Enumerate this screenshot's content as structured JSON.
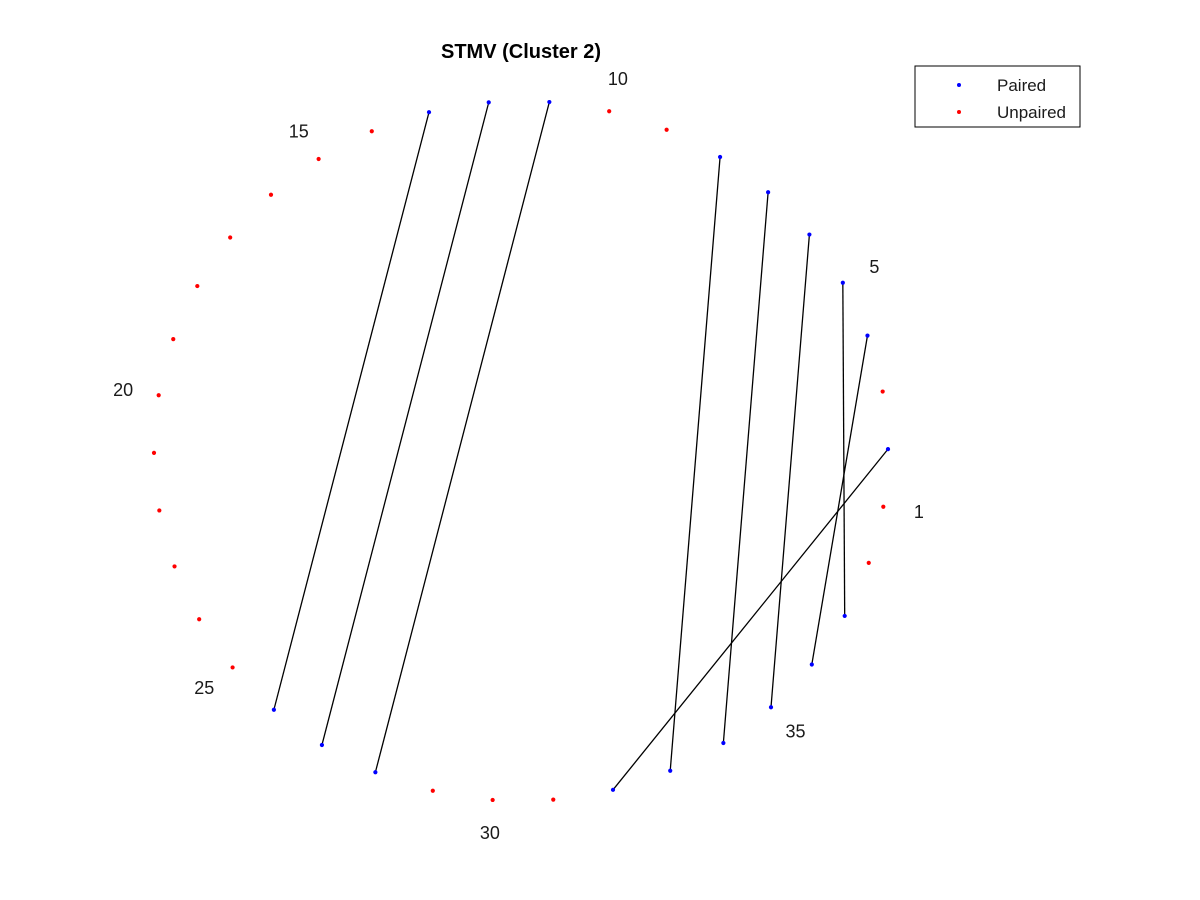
{
  "title": "STMV (Cluster 2)",
  "colors": {
    "paired": "#0000ff",
    "unpaired": "#ff0000",
    "bond": "#000000",
    "legend_border": "#000000"
  },
  "legend": {
    "placement": "top-right",
    "entries": [
      {
        "label": "Paired",
        "color": "#0000ff"
      },
      {
        "label": "Unpaired",
        "color": "#ff0000"
      }
    ]
  },
  "chart_data": {
    "type": "arc-diagram",
    "n_nucleotides": 38,
    "index_labels": [
      1,
      5,
      10,
      15,
      20,
      25,
      30,
      35
    ],
    "pairs": [
      [
        2,
        32
      ],
      [
        4,
        36
      ],
      [
        5,
        37
      ],
      [
        6,
        35
      ],
      [
        7,
        34
      ],
      [
        8,
        33
      ],
      [
        11,
        28
      ],
      [
        12,
        27
      ],
      [
        13,
        26
      ]
    ],
    "unpaired": [
      1,
      3,
      9,
      10,
      14,
      15,
      16,
      17,
      18,
      19,
      20,
      21,
      22,
      23,
      24,
      25,
      29,
      30,
      31,
      38
    ]
  }
}
